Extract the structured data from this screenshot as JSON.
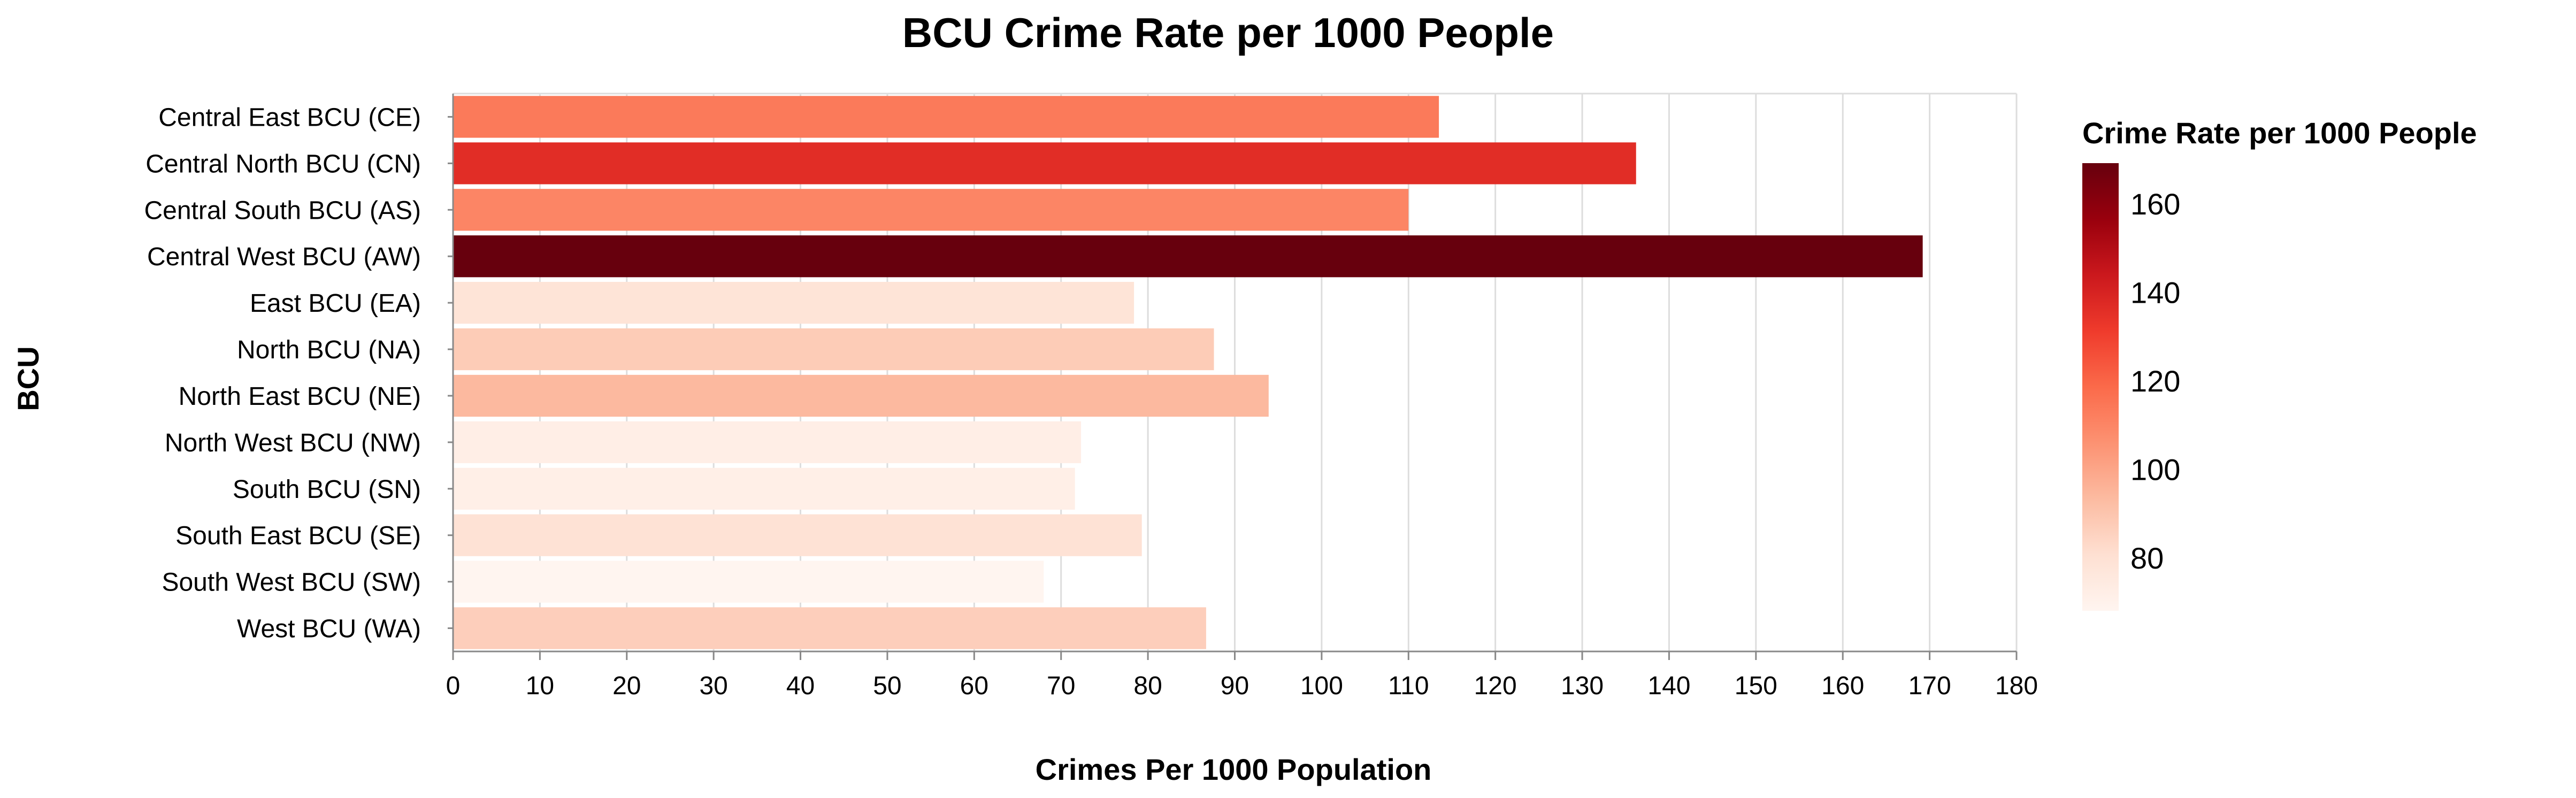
{
  "chart_data": {
    "type": "bar",
    "orientation": "horizontal",
    "title": "BCU Crime Rate per 1000 People",
    "xlabel": "Crimes Per 1000 Population",
    "ylabel": "BCU",
    "xlim": [
      0,
      180
    ],
    "x_ticks": [
      0,
      10,
      20,
      30,
      40,
      50,
      60,
      70,
      80,
      90,
      100,
      110,
      120,
      130,
      140,
      150,
      160,
      170,
      180
    ],
    "grid": true,
    "categories": [
      "Central East BCU (CE)",
      "Central North BCU (CN)",
      "Central South BCU (AS)",
      "Central West BCU (AW)",
      "East BCU (EA)",
      "North BCU (NA)",
      "North East BCU (NE)",
      "North West BCU (NW)",
      "South BCU (SN)",
      "South East BCU (SE)",
      "South West BCU (SW)",
      "West BCU (WA)"
    ],
    "values": [
      113.5,
      136.2,
      110.0,
      169.2,
      78.4,
      87.6,
      93.9,
      72.3,
      71.6,
      79.3,
      68.0,
      86.7
    ],
    "legend": {
      "title": "Crime Rate per 1000 People",
      "placement": "right",
      "type": "gradient",
      "domain": [
        68.0,
        169.2
      ],
      "ticks": [
        80,
        100,
        120,
        140,
        160
      ],
      "colors": [
        "#fff5f0",
        "#fee0d2",
        "#fcbba1",
        "#fc9272",
        "#fb6a4a",
        "#ef3b2c",
        "#cb181d",
        "#99000d",
        "#67000d"
      ]
    }
  }
}
